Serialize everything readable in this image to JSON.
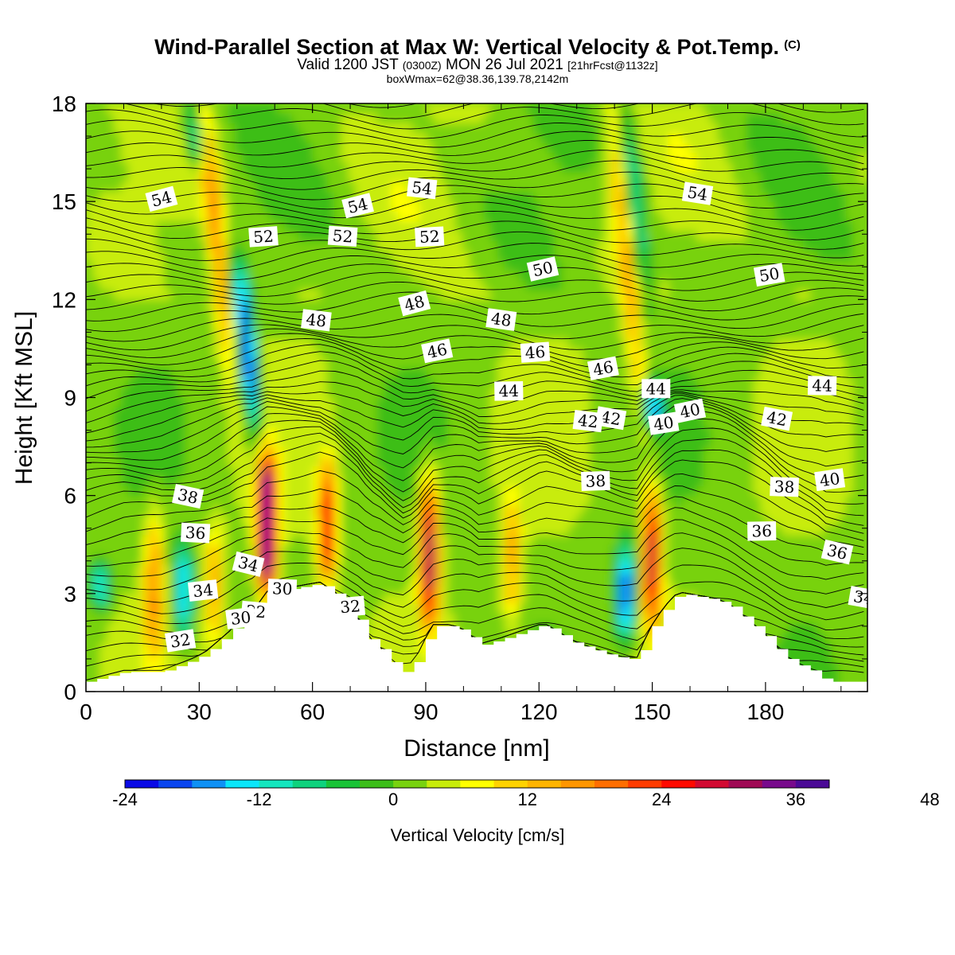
{
  "title": {
    "main": "Wind-Parallel Section at Max W: Vertical Velocity & Pot.Temp.",
    "copyright": "(C)",
    "valid_prefix": "Valid 1200 JST",
    "valid_utc": "(0300Z)",
    "valid_date": "MON 26 Jul 2021",
    "forecast": "[21hrFcst@1132z]",
    "box": "boxWmax=62@38.36,139.78,2142m"
  },
  "chart_data": {
    "type": "heatmap",
    "xlabel": "Distance [nm]",
    "ylabel": "Height [Kft MSL]",
    "xlim": [
      0,
      207
    ],
    "ylim": [
      0,
      18
    ],
    "x_ticks": [
      0,
      30,
      60,
      90,
      120,
      150,
      180
    ],
    "y_ticks": [
      0,
      3,
      6,
      9,
      12,
      15,
      18
    ],
    "fill_variable": "Vertical Velocity [cm/s]",
    "colorbar": {
      "title": "Vertical Velocity [cm/s]",
      "tick_labels": [
        "-24",
        "-12",
        "0",
        "12",
        "24",
        "36",
        "48"
      ],
      "tick_values": [
        -24,
        -12,
        0,
        12,
        24,
        36,
        48
      ],
      "levels": [
        -24,
        -21,
        -18,
        -15,
        -12,
        -9,
        -6,
        -3,
        0,
        3,
        6,
        9,
        12,
        15,
        18,
        21,
        24,
        27,
        30,
        33,
        36,
        39,
        42,
        45,
        48,
        51,
        54
      ],
      "colors": [
        "#0a0ae6",
        "#0a46f0",
        "#0f91f5",
        "#0ae6fa",
        "#14e6be",
        "#0ed27d",
        "#19c337",
        "#3cbe19",
        "#78d20f",
        "#c8ec0a",
        "#ffff00",
        "#ffd200",
        "#ffb400",
        "#ff9600",
        "#ff6e00",
        "#ff3c00",
        "#ff0a00",
        "#d20a32",
        "#a00a55",
        "#780a8c",
        "#4b0a96"
      ]
    },
    "vertical_velocity_updrafts": [
      {
        "x": 48,
        "z_bottom": 3.0,
        "z_top": 7.2,
        "max": 42
      },
      {
        "x": 64,
        "z_bottom": 3.3,
        "z_top": 7.0,
        "max": 24
      },
      {
        "x": 91,
        "z_bottom": 2.0,
        "z_top": 6.5,
        "max": 30
      },
      {
        "x": 150,
        "z_bottom": 2.0,
        "z_top": 6.3,
        "max": 27
      },
      {
        "x": 18,
        "z_bottom": 1.0,
        "z_top": 5.5,
        "max": 15
      },
      {
        "x": 34,
        "z_bottom": 1.5,
        "z_top": 5.0,
        "max": 12
      },
      {
        "x": 113,
        "z_bottom": 2.0,
        "z_top": 6.0,
        "max": 12
      },
      {
        "x": 40,
        "z_bottom": 10.0,
        "z_top": 18.0,
        "max": 15
      },
      {
        "x": 148,
        "z_bottom": 8.0,
        "z_top": 18.0,
        "max": 12
      }
    ],
    "vertical_velocity_downdrafts": [
      {
        "x": 45,
        "z_bottom": 8.0,
        "z_top": 13.0,
        "min": -24
      },
      {
        "x": 26,
        "z_bottom": 1.5,
        "z_top": 4.5,
        "min": -18
      },
      {
        "x": 4,
        "z_bottom": 2.5,
        "z_top": 4.0,
        "min": -15
      },
      {
        "x": 143,
        "z_bottom": 1.5,
        "z_top": 4.5,
        "min": -21
      },
      {
        "x": 151,
        "z_bottom": 8.0,
        "z_top": 9.5,
        "min": -18
      },
      {
        "x": 37,
        "z_bottom": 16.0,
        "z_top": 18.0,
        "min": -15
      },
      {
        "x": 152,
        "z_bottom": 12.0,
        "z_top": 18.0,
        "min": -12
      }
    ],
    "potential_temperature_contour_labels": [
      "54",
      "52",
      "48",
      "46",
      "44",
      "42",
      "40",
      "38",
      "36",
      "34",
      "32",
      "54",
      "52",
      "48",
      "46",
      "44",
      "42",
      "40",
      "36",
      "34",
      "32",
      "54",
      "50",
      "38",
      "54",
      "50",
      "44",
      "38",
      "30",
      "52",
      "48",
      "46",
      "42",
      "40",
      "36",
      "34",
      "32",
      "30"
    ],
    "terrain": {
      "x": [
        0,
        10,
        20,
        29,
        32,
        35,
        38,
        41,
        45,
        47,
        62,
        66,
        69,
        72,
        75,
        78,
        81,
        84,
        87,
        90,
        92,
        97,
        101,
        104,
        110,
        120,
        122,
        125,
        129,
        134,
        139,
        143,
        146,
        149,
        151,
        155,
        157,
        167,
        171,
        175,
        178,
        181,
        183,
        186,
        189,
        193,
        196,
        207
      ],
      "height": [
        0.3,
        0.6,
        0.6,
        1.0,
        1.2,
        1.5,
        1.8,
        2.2,
        2.4,
        3.0,
        3.3,
        3.0,
        2.6,
        2.2,
        1.6,
        1.3,
        0.9,
        0.6,
        0.9,
        1.6,
        2.0,
        2.0,
        1.8,
        1.4,
        1.6,
        2.0,
        2.0,
        1.8,
        1.5,
        1.3,
        1.1,
        1.0,
        1.0,
        1.8,
        2.2,
        2.8,
        3.0,
        2.8,
        2.6,
        2.2,
        1.9,
        1.6,
        1.3,
        1.0,
        0.8,
        0.6,
        0.3,
        0.3
      ]
    },
    "grid": false
  }
}
